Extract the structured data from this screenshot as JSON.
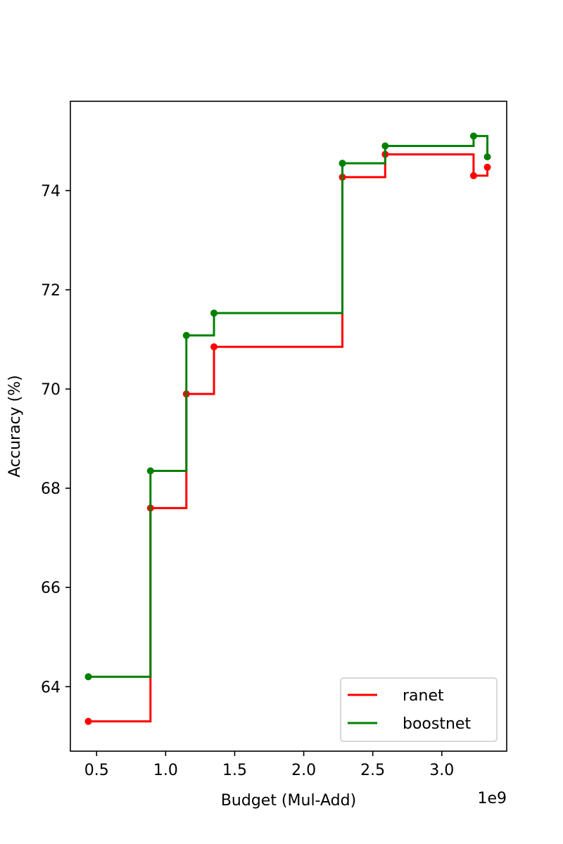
{
  "chart_data": {
    "type": "line",
    "step": "post",
    "title": "",
    "xlabel": "Budget (Mul-Add)",
    "ylabel": "Accuracy (%)",
    "x_offset_text": "1e9",
    "xlim": [
      0.31,
      3.47
    ],
    "ylim": [
      62.7,
      75.8
    ],
    "xticks": [
      0.5,
      1.0,
      1.5,
      2.0,
      2.5,
      3.0
    ],
    "xtick_labels": [
      "0.5",
      "1.0",
      "1.5",
      "2.0",
      "2.5",
      "3.0"
    ],
    "yticks": [
      64,
      66,
      68,
      70,
      72,
      74
    ],
    "ytick_labels": [
      "64",
      "66",
      "68",
      "70",
      "72",
      "74"
    ],
    "grid": false,
    "legend_position": "lower-right",
    "series": [
      {
        "name": "ranet",
        "color": "#ff0000",
        "x": [
          0.44,
          0.89,
          1.15,
          1.35,
          2.28,
          2.59,
          3.23,
          3.33
        ],
        "y": [
          63.3,
          67.6,
          69.9,
          70.85,
          74.27,
          74.73,
          74.3,
          74.47
        ]
      },
      {
        "name": "boostnet",
        "color": "#008000",
        "x": [
          0.44,
          0.89,
          1.15,
          1.35,
          2.28,
          2.59,
          3.23,
          3.33
        ],
        "y": [
          64.2,
          68.35,
          71.08,
          71.53,
          74.55,
          74.9,
          75.1,
          74.68
        ]
      }
    ]
  }
}
